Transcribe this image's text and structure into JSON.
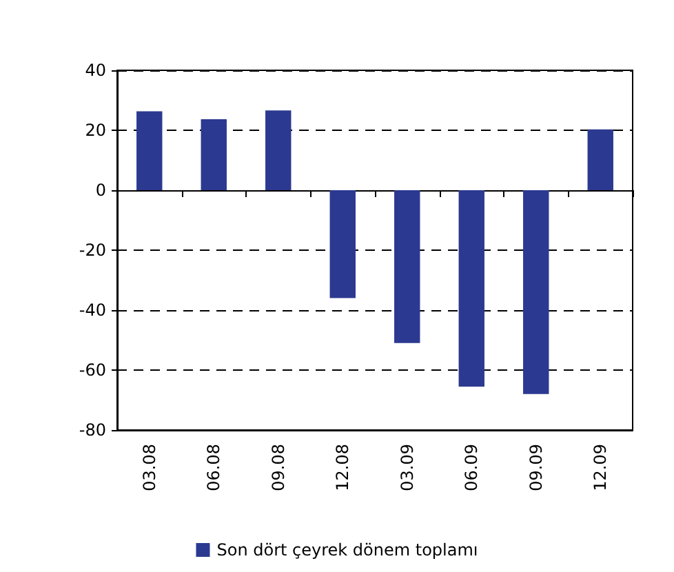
{
  "chart_data": {
    "type": "bar",
    "categories": [
      "03.08",
      "06.08",
      "09.08",
      "12.08",
      "03.09",
      "06.09",
      "09.09",
      "12.09"
    ],
    "series": [
      {
        "name": "Son dört çeyrek dönem toplamı",
        "color": "#2b3990",
        "values": [
          26.3,
          23.7,
          26.6,
          -36,
          -51,
          -65.5,
          -68,
          20.3
        ]
      }
    ],
    "ylim": [
      -80,
      40
    ],
    "yticks": [
      -80,
      -60,
      -40,
      -20,
      0,
      20,
      40
    ],
    "grid": "y",
    "legend": "bottom"
  }
}
